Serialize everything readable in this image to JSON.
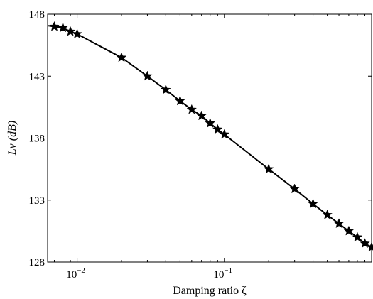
{
  "chart_data": {
    "type": "line",
    "xlabel": "Damping ratio ζ",
    "ylabel": "Lv (dB)",
    "xscale": "log",
    "xlim": [
      0.0063,
      1.0
    ],
    "ylim": [
      128,
      148
    ],
    "grid": false,
    "legend": "none",
    "x_ticks": [
      {
        "value": 0.01,
        "base": "10",
        "exp": "−2"
      },
      {
        "value": 0.1,
        "base": "10",
        "exp": "−1"
      }
    ],
    "y_ticks": [
      {
        "value": 128,
        "label": "128"
      },
      {
        "value": 133,
        "label": "133"
      },
      {
        "value": 138,
        "label": "138"
      },
      {
        "value": 143,
        "label": "143"
      },
      {
        "value": 148,
        "label": "148"
      }
    ],
    "line_color": "#000000",
    "marker": "star",
    "series": [
      {
        "x": [
          0.007,
          0.008,
          0.009,
          0.01,
          0.02,
          0.03,
          0.04,
          0.05,
          0.06,
          0.07,
          0.08,
          0.09,
          0.1,
          0.2,
          0.3,
          0.4,
          0.5,
          0.6,
          0.7,
          0.8,
          0.9,
          1.0
        ],
        "y": [
          147.0,
          146.9,
          146.6,
          146.4,
          144.5,
          143.0,
          141.9,
          141.0,
          140.3,
          139.8,
          139.2,
          138.7,
          138.3,
          135.5,
          133.9,
          132.7,
          131.8,
          131.1,
          130.5,
          130.0,
          129.5,
          129.2
        ]
      }
    ]
  }
}
